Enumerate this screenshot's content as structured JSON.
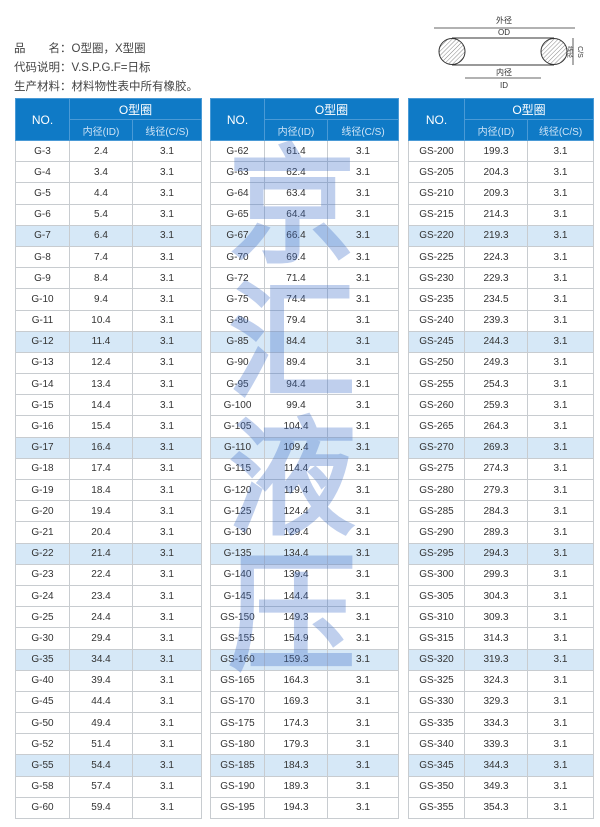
{
  "info": {
    "line1": "品　　名：O型圈，X型圈",
    "line2": "代码说明：V.S.P.G.F=日标",
    "line3": "生产材料：材料物性表中所有橡胶。"
  },
  "diagram": {
    "od_cn": "外径",
    "od": "OD",
    "id_cn": "内径",
    "id": "ID",
    "cs_cn": "线径",
    "cs": "C/S"
  },
  "header": {
    "no": "NO.",
    "group": "O型圈",
    "id": "内径(ID)",
    "cs": "线径(C/S)"
  },
  "colors": {
    "header": "#0f7ac6",
    "highlight": "#d6e8f7"
  },
  "watermark": [
    "京",
    "汇",
    "液",
    "压"
  ],
  "tables": [
    {
      "rows": [
        [
          "G-3",
          "2.4",
          "3.1"
        ],
        [
          "G-4",
          "3.4",
          "3.1"
        ],
        [
          "G-5",
          "4.4",
          "3.1"
        ],
        [
          "G-6",
          "5.4",
          "3.1"
        ],
        [
          "G-7",
          "6.4",
          "3.1"
        ],
        [
          "G-8",
          "7.4",
          "3.1"
        ],
        [
          "G-9",
          "8.4",
          "3.1"
        ],
        [
          "G-10",
          "9.4",
          "3.1"
        ],
        [
          "G-11",
          "10.4",
          "3.1"
        ],
        [
          "G-12",
          "11.4",
          "3.1"
        ],
        [
          "G-13",
          "12.4",
          "3.1"
        ],
        [
          "G-14",
          "13.4",
          "3.1"
        ],
        [
          "G-15",
          "14.4",
          "3.1"
        ],
        [
          "G-16",
          "15.4",
          "3.1"
        ],
        [
          "G-17",
          "16.4",
          "3.1"
        ],
        [
          "G-18",
          "17.4",
          "3.1"
        ],
        [
          "G-19",
          "18.4",
          "3.1"
        ],
        [
          "G-20",
          "19.4",
          "3.1"
        ],
        [
          "G-21",
          "20.4",
          "3.1"
        ],
        [
          "G-22",
          "21.4",
          "3.1"
        ],
        [
          "G-23",
          "22.4",
          "3.1"
        ],
        [
          "G-24",
          "23.4",
          "3.1"
        ],
        [
          "G-25",
          "24.4",
          "3.1"
        ],
        [
          "G-30",
          "29.4",
          "3.1"
        ],
        [
          "G-35",
          "34.4",
          "3.1"
        ],
        [
          "G-40",
          "39.4",
          "3.1"
        ],
        [
          "G-45",
          "44.4",
          "3.1"
        ],
        [
          "G-50",
          "49.4",
          "3.1"
        ],
        [
          "G-52",
          "51.4",
          "3.1"
        ],
        [
          "G-55",
          "54.4",
          "3.1"
        ],
        [
          "G-58",
          "57.4",
          "3.1"
        ],
        [
          "G-60",
          "59.4",
          "3.1"
        ]
      ]
    },
    {
      "rows": [
        [
          "G-62",
          "61.4",
          "3.1"
        ],
        [
          "G-63",
          "62.4",
          "3.1"
        ],
        [
          "G-64",
          "63.4",
          "3.1"
        ],
        [
          "G-65",
          "64.4",
          "3.1"
        ],
        [
          "G-67",
          "66.4",
          "3.1"
        ],
        [
          "G-70",
          "69.4",
          "3.1"
        ],
        [
          "G-72",
          "71.4",
          "3.1"
        ],
        [
          "G-75",
          "74.4",
          "3.1"
        ],
        [
          "G-80",
          "79.4",
          "3.1"
        ],
        [
          "G-85",
          "84.4",
          "3.1"
        ],
        [
          "G-90",
          "89.4",
          "3.1"
        ],
        [
          "G-95",
          "94.4",
          "3.1"
        ],
        [
          "G-100",
          "99.4",
          "3.1"
        ],
        [
          "G-105",
          "104.4",
          "3.1"
        ],
        [
          "G-110",
          "109.4",
          "3.1"
        ],
        [
          "G-115",
          "114.4",
          "3.1"
        ],
        [
          "G-120",
          "119.4",
          "3.1"
        ],
        [
          "G-125",
          "124.4",
          "3.1"
        ],
        [
          "G-130",
          "129.4",
          "3.1"
        ],
        [
          "G-135",
          "134.4",
          "3.1"
        ],
        [
          "G-140",
          "139.4",
          "3.1"
        ],
        [
          "G-145",
          "144.4",
          "3.1"
        ],
        [
          "GS-150",
          "149.3",
          "3.1"
        ],
        [
          "GS-155",
          "154.9",
          "3.1"
        ],
        [
          "GS-160",
          "159.3",
          "3.1"
        ],
        [
          "GS-165",
          "164.3",
          "3.1"
        ],
        [
          "GS-170",
          "169.3",
          "3.1"
        ],
        [
          "GS-175",
          "174.3",
          "3.1"
        ],
        [
          "GS-180",
          "179.3",
          "3.1"
        ],
        [
          "GS-185",
          "184.3",
          "3.1"
        ],
        [
          "GS-190",
          "189.3",
          "3.1"
        ],
        [
          "GS-195",
          "194.3",
          "3.1"
        ]
      ]
    },
    {
      "rows": [
        [
          "GS-200",
          "199.3",
          "3.1"
        ],
        [
          "GS-205",
          "204.3",
          "3.1"
        ],
        [
          "GS-210",
          "209.3",
          "3.1"
        ],
        [
          "GS-215",
          "214.3",
          "3.1"
        ],
        [
          "GS-220",
          "219.3",
          "3.1"
        ],
        [
          "GS-225",
          "224.3",
          "3.1"
        ],
        [
          "GS-230",
          "229.3",
          "3.1"
        ],
        [
          "GS-235",
          "234.5",
          "3.1"
        ],
        [
          "GS-240",
          "239.3",
          "3.1"
        ],
        [
          "GS-245",
          "244.3",
          "3.1"
        ],
        [
          "GS-250",
          "249.3",
          "3.1"
        ],
        [
          "GS-255",
          "254.3",
          "3.1"
        ],
        [
          "GS-260",
          "259.3",
          "3.1"
        ],
        [
          "GS-265",
          "264.3",
          "3.1"
        ],
        [
          "GS-270",
          "269.3",
          "3.1"
        ],
        [
          "GS-275",
          "274.3",
          "3.1"
        ],
        [
          "GS-280",
          "279.3",
          "3.1"
        ],
        [
          "GS-285",
          "284.3",
          "3.1"
        ],
        [
          "GS-290",
          "289.3",
          "3.1"
        ],
        [
          "GS-295",
          "294.3",
          "3.1"
        ],
        [
          "GS-300",
          "299.3",
          "3.1"
        ],
        [
          "GS-305",
          "304.3",
          "3.1"
        ],
        [
          "GS-310",
          "309.3",
          "3.1"
        ],
        [
          "GS-315",
          "314.3",
          "3.1"
        ],
        [
          "GS-320",
          "319.3",
          "3.1"
        ],
        [
          "GS-325",
          "324.3",
          "3.1"
        ],
        [
          "GS-330",
          "329.3",
          "3.1"
        ],
        [
          "GS-335",
          "334.3",
          "3.1"
        ],
        [
          "GS-340",
          "339.3",
          "3.1"
        ],
        [
          "GS-345",
          "344.3",
          "3.1"
        ],
        [
          "GS-350",
          "349.3",
          "3.1"
        ],
        [
          "GS-355",
          "354.3",
          "3.1"
        ]
      ]
    }
  ]
}
